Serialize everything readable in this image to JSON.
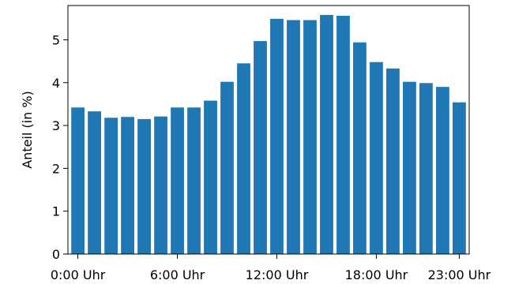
{
  "chart_data": {
    "type": "bar",
    "title": "",
    "xlabel": "",
    "ylabel": "Anteil (in %)",
    "ylim": [
      0,
      5.8
    ],
    "xlim": [
      -0.6,
      23.6
    ],
    "grid": false,
    "bar_color": "#1f77b4",
    "yticks": [
      0,
      1,
      2,
      3,
      4,
      5
    ],
    "xticks": [
      {
        "value": 0,
        "label": "0:00 Uhr"
      },
      {
        "value": 6,
        "label": "6:00 Uhr"
      },
      {
        "value": 12,
        "label": "12:00 Uhr"
      },
      {
        "value": 18,
        "label": "18:00 Uhr"
      },
      {
        "value": 23,
        "label": "23:00 Uhr"
      }
    ],
    "categories": [
      0,
      1,
      2,
      3,
      4,
      5,
      6,
      7,
      8,
      9,
      10,
      11,
      12,
      13,
      14,
      15,
      16,
      17,
      18,
      19,
      20,
      21,
      22,
      23
    ],
    "values": [
      3.42,
      3.33,
      3.18,
      3.2,
      3.15,
      3.21,
      3.42,
      3.42,
      3.58,
      4.02,
      4.45,
      4.97,
      5.49,
      5.46,
      5.46,
      5.58,
      5.56,
      4.94,
      4.48,
      4.33,
      4.02,
      3.99,
      3.9,
      3.54
    ]
  }
}
